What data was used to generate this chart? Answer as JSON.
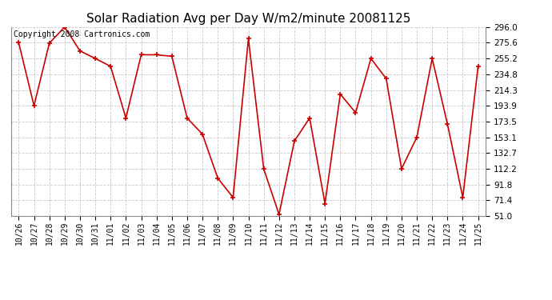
{
  "title": "Solar Radiation Avg per Day W/m2/minute 20081125",
  "copyright_text": "Copyright 2008 Cartronics.com",
  "dates": [
    "10/26",
    "10/27",
    "10/28",
    "10/29",
    "10/30",
    "10/31",
    "11/01",
    "11/02",
    "11/03",
    "11/04",
    "11/05",
    "11/06",
    "11/07",
    "11/08",
    "11/09",
    "11/10",
    "11/11",
    "11/12",
    "11/13",
    "11/14",
    "11/15",
    "11/16",
    "11/17",
    "11/18",
    "11/19",
    "11/20",
    "11/21",
    "11/22",
    "11/23",
    "11/24",
    "11/25"
  ],
  "values": [
    275.6,
    193.9,
    275.0,
    296.0,
    265.0,
    255.2,
    245.0,
    178.0,
    260.0,
    260.0,
    258.0,
    178.0,
    157.0,
    100.0,
    75.0,
    281.0,
    112.2,
    53.0,
    148.0,
    178.0,
    67.0,
    209.0,
    185.0,
    255.2,
    229.0,
    112.2,
    153.1,
    255.2,
    170.0,
    75.0,
    245.0
  ],
  "ylim": [
    51.0,
    296.0
  ],
  "yticks": [
    51.0,
    71.4,
    91.8,
    112.2,
    132.7,
    153.1,
    173.5,
    193.9,
    214.3,
    234.8,
    255.2,
    275.6,
    296.0
  ],
  "line_color": "#cc0000",
  "marker": "+",
  "bg_color": "#ffffff",
  "grid_color": "#c8c8c8",
  "title_fontsize": 11,
  "copyright_fontsize": 7,
  "tick_fontsize": 7,
  "ytick_fontsize": 7.5
}
